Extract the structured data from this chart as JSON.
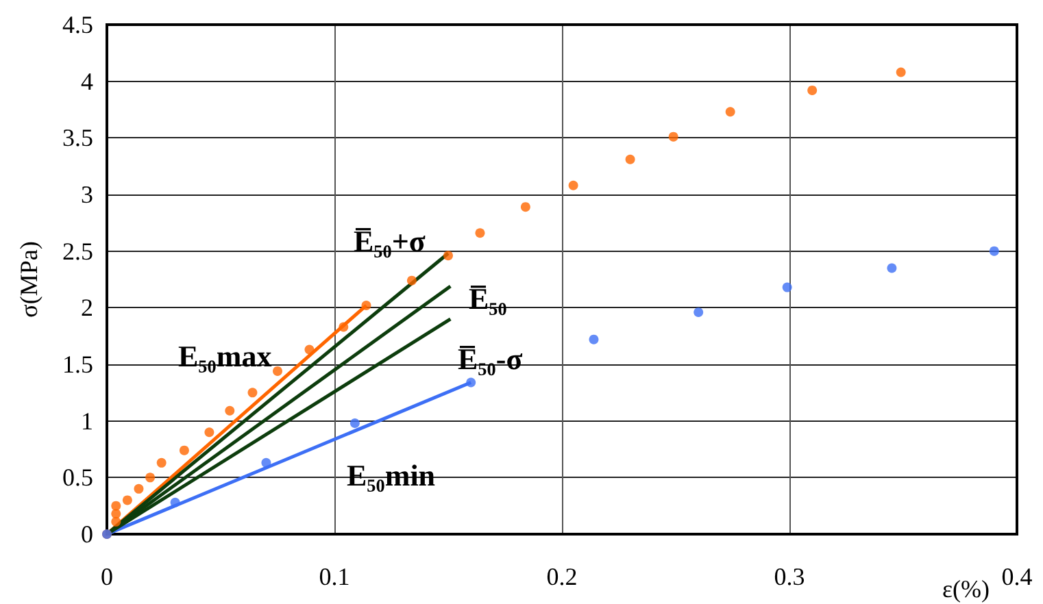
{
  "chart_data": {
    "type": "scatter",
    "xlabel": "ε(%)",
    "ylabel": "σ(MPa)",
    "xlim": [
      0,
      0.4
    ],
    "xticks": [
      0,
      0.1,
      0.2,
      0.3,
      0.4
    ],
    "ylim": [
      0,
      4.5
    ],
    "yticks": [
      0,
      0.5,
      1,
      1.5,
      2,
      2.5,
      3,
      3.5,
      4,
      4.5
    ],
    "grid": true,
    "series": [
      {
        "marker": "circle",
        "color": "#ff6600",
        "x": [
          0,
          0.004,
          0.004,
          0.004,
          0.009,
          0.014,
          0.019,
          0.024,
          0.034,
          0.045,
          0.054,
          0.064,
          0.075,
          0.089,
          0.104,
          0.114,
          0.134,
          0.15,
          0.164,
          0.184,
          0.205,
          0.23,
          0.249,
          0.274,
          0.31,
          0.349
        ],
        "values": [
          0,
          0.11,
          0.18,
          0.25,
          0.3,
          0.4,
          0.5,
          0.63,
          0.74,
          0.9,
          1.09,
          1.25,
          1.44,
          1.63,
          1.83,
          2.02,
          2.24,
          2.46,
          2.66,
          2.89,
          3.08,
          3.31,
          3.51,
          3.73,
          3.92,
          4.08
        ]
      },
      {
        "marker": "circle",
        "color": "#3d6ff5",
        "x": [
          0,
          0.03,
          0.07,
          0.109,
          0.16,
          0.214,
          0.26,
          0.299,
          0.345,
          0.39
        ],
        "values": [
          0,
          0.28,
          0.63,
          0.98,
          1.34,
          1.72,
          1.96,
          2.18,
          2.35,
          2.5
        ]
      },
      {
        "type": "line",
        "color": "#ff6600",
        "x": [
          0,
          0.114
        ],
        "values": [
          0,
          2.02
        ]
      },
      {
        "type": "line",
        "color": "#3d6ff5",
        "x": [
          0,
          0.16
        ],
        "values": [
          0,
          1.34
        ]
      },
      {
        "type": "line",
        "color": "#0d3d0d",
        "x": [
          0,
          0.151
        ],
        "values": [
          0,
          2.19
        ]
      },
      {
        "type": "line",
        "color": "#0d3d0d",
        "x": [
          0,
          0.15
        ],
        "values": [
          0,
          2.48
        ]
      },
      {
        "type": "line",
        "color": "#0d3d0d",
        "x": [
          0,
          0.151
        ],
        "values": [
          0,
          1.9
        ]
      }
    ],
    "annotations": [
      "E̅₅₀+σ",
      "E̅₅₀",
      "E̅₅₀-σ",
      "E₅₀max",
      "E₅₀min"
    ]
  }
}
